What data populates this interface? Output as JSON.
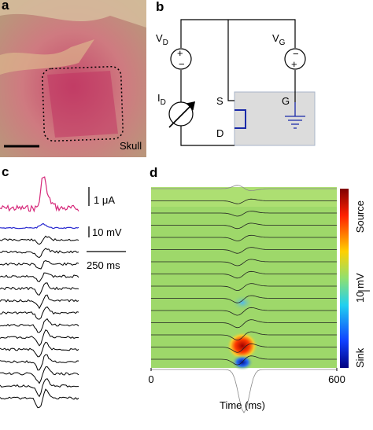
{
  "panel_a": {
    "label": "a",
    "skull": "Skull"
  },
  "panel_b": {
    "label": "b",
    "vd": {
      "main": "V",
      "sub": "D"
    },
    "vg": {
      "main": "V",
      "sub": "G"
    },
    "id": {
      "main": "I",
      "sub": "D"
    },
    "s": "S",
    "d": "D",
    "g": "G"
  },
  "panel_c": {
    "label": "c",
    "current_scale": "1 μA",
    "voltage_scale": "10 mV",
    "time_scale": "250 ms"
  },
  "panel_d": {
    "label": "d",
    "colorbar_top": "Source",
    "colorbar_scale": "10 mV",
    "colorbar_bottom": "Sink",
    "xlim": [
      0,
      600
    ],
    "xticks": [
      0,
      600
    ],
    "xlabel": "Time (ms)"
  }
}
